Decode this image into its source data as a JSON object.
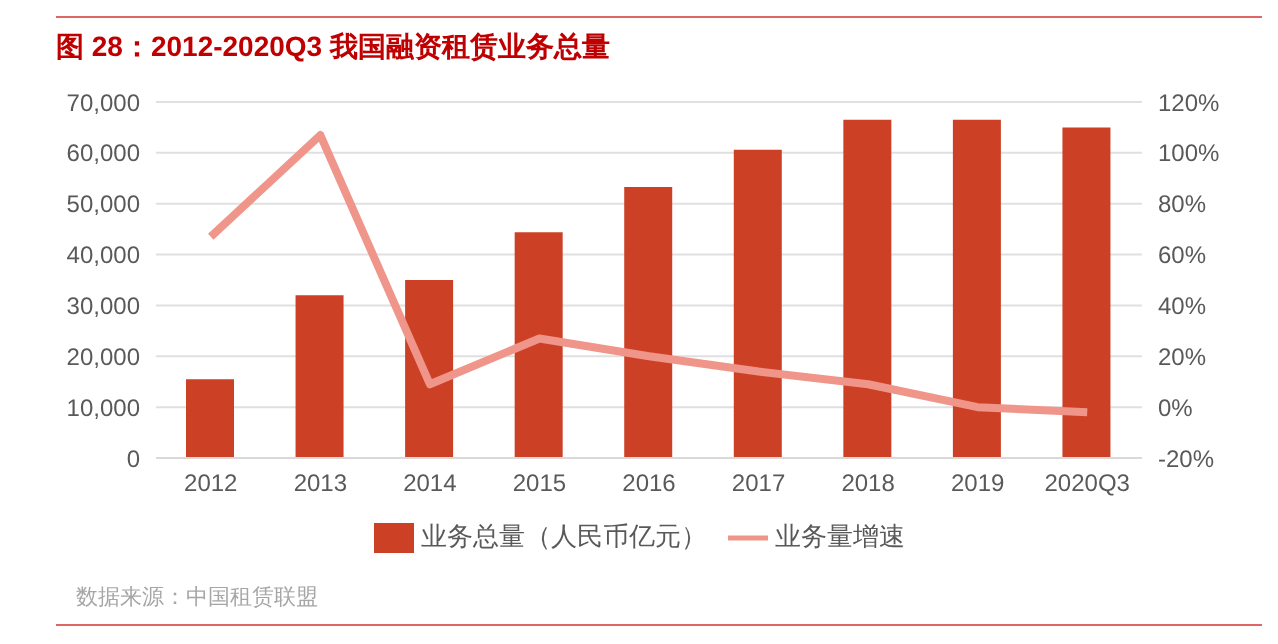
{
  "chart_data": {
    "type": "bar",
    "title": "图 28：2012-2020Q3 我国融资租赁业务总量",
    "categories": [
      "2012",
      "2013",
      "2014",
      "2015",
      "2016",
      "2017",
      "2018",
      "2019",
      "2020Q3"
    ],
    "series": [
      {
        "name": "业务总量（人民币亿元）",
        "color": "#cc4125",
        "values": [
          15500,
          32000,
          35000,
          44400,
          53300,
          60600,
          66500,
          66500,
          65000
        ]
      },
      {
        "name": "业务量增速",
        "type": "line",
        "axis": "y2",
        "color": "#f0958a",
        "values": [
          67,
          107,
          9,
          27,
          20,
          14,
          9,
          0,
          -2
        ]
      }
    ],
    "ylim": [
      0,
      70000
    ],
    "yticks": [
      0,
      {
        "value": 10000,
        "label": "10,000"
      },
      {
        "value": 20000,
        "label": "20,000"
      },
      {
        "value": 30000,
        "label": "30,000"
      },
      {
        "value": 40000,
        "label": "40,000"
      },
      {
        "value": 50000,
        "label": "50,000"
      },
      {
        "value": 60000,
        "label": "60,000"
      },
      {
        "value": 70000,
        "label": "70,000"
      }
    ],
    "y2lim": [
      -20,
      120
    ],
    "y2ticks": [
      {
        "value": -20,
        "label": "-20%"
      },
      {
        "value": 0,
        "label": "0%"
      },
      {
        "value": 20,
        "label": "20%"
      },
      {
        "value": 40,
        "label": "40%"
      },
      {
        "value": 60,
        "label": "60%"
      },
      {
        "value": 80,
        "label": "80%"
      },
      {
        "value": 100,
        "label": "100%"
      },
      {
        "value": 120,
        "label": "120%"
      }
    ],
    "grid": "y",
    "legend": "bottom",
    "marker": "none",
    "line_style": "solid",
    "annotations": [
      "数据来源：中国租赁联盟"
    ]
  }
}
